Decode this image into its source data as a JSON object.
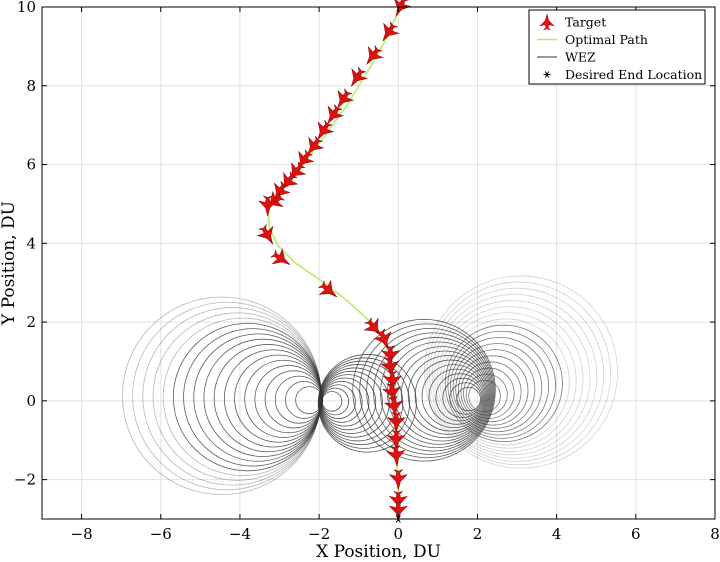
{
  "chart_data": {
    "type": "line",
    "xlabel": "X Position, DU",
    "ylabel": "Y Position, DU",
    "xlim": [
      -9,
      8
    ],
    "ylim": [
      -3,
      10
    ],
    "xticks": [
      -8,
      -6,
      -4,
      -2,
      0,
      2,
      4,
      6,
      8
    ],
    "yticks": [
      -2,
      0,
      2,
      4,
      6,
      8,
      10
    ],
    "grid": true,
    "legend_position": "top-right",
    "colors": {
      "target": "#dd1111",
      "optimal_path": "#b8ec6c",
      "wez": "#333333",
      "desired_end": "#000000",
      "grid": "#e2e2e2"
    },
    "legend": [
      {
        "key": "target",
        "label": "Target",
        "marker": "aircraft-icon"
      },
      {
        "key": "optimal_path",
        "label": "Optimal Path",
        "marker": "line"
      },
      {
        "key": "wez",
        "label": "WEZ",
        "marker": "line"
      },
      {
        "key": "desired_end",
        "label": "Desired End Location",
        "marker": "asterisk-icon"
      }
    ],
    "series": [
      {
        "key": "optimal_path",
        "name": "Optimal Path",
        "points": [
          [
            0.05,
            10.0
          ],
          [
            -0.3,
            9.2
          ],
          [
            -0.75,
            8.4
          ],
          [
            -1.3,
            7.5
          ],
          [
            -1.95,
            6.6
          ],
          [
            -2.55,
            5.8
          ],
          [
            -3.05,
            5.3
          ],
          [
            -3.3,
            4.9
          ],
          [
            -3.25,
            4.4
          ],
          [
            -3.05,
            3.95
          ],
          [
            -2.6,
            3.5
          ],
          [
            -1.95,
            3.05
          ],
          [
            -1.3,
            2.55
          ],
          [
            -0.75,
            2.05
          ],
          [
            -0.35,
            1.55
          ],
          [
            -0.2,
            1.0
          ],
          [
            -0.2,
            0.4
          ],
          [
            -0.1,
            -0.3
          ],
          [
            -0.05,
            -1.0
          ],
          [
            -0.05,
            -1.6
          ],
          [
            0.0,
            -2.2
          ],
          [
            0.0,
            -2.6
          ],
          [
            0.0,
            -3.0
          ]
        ]
      },
      {
        "key": "target",
        "name": "Target",
        "points": [
          [
            0.05,
            10.0
          ],
          [
            -0.25,
            9.35
          ],
          [
            -0.65,
            8.75
          ],
          [
            -1.05,
            8.2
          ],
          [
            -1.4,
            7.65
          ],
          [
            -1.65,
            7.25
          ],
          [
            -1.9,
            6.85
          ],
          [
            -2.15,
            6.45
          ],
          [
            -2.4,
            6.1
          ],
          [
            -2.6,
            5.8
          ],
          [
            -2.8,
            5.55
          ],
          [
            -3.0,
            5.3
          ],
          [
            -3.15,
            5.05
          ],
          [
            -3.3,
            4.95
          ],
          [
            -3.3,
            4.2
          ],
          [
            -2.95,
            3.6
          ],
          [
            -1.75,
            2.8
          ],
          [
            -0.6,
            1.85
          ],
          [
            -0.35,
            1.55
          ],
          [
            -0.2,
            1.15
          ],
          [
            -0.2,
            0.85
          ],
          [
            -0.15,
            0.5
          ],
          [
            -0.15,
            0.2
          ],
          [
            -0.1,
            -0.15
          ],
          [
            -0.05,
            -0.55
          ],
          [
            -0.05,
            -1.0
          ],
          [
            -0.05,
            -1.4
          ],
          [
            0.0,
            -2.0
          ],
          [
            0.0,
            -2.55
          ],
          [
            0.0,
            -2.8
          ]
        ]
      },
      {
        "key": "desired_end",
        "name": "Desired End Location",
        "points": [
          [
            0.0,
            -3.0
          ]
        ]
      }
    ],
    "wez_centers": [
      [
        -1.9,
        0.0
      ],
      [
        2.0,
        0.0
      ]
    ]
  }
}
